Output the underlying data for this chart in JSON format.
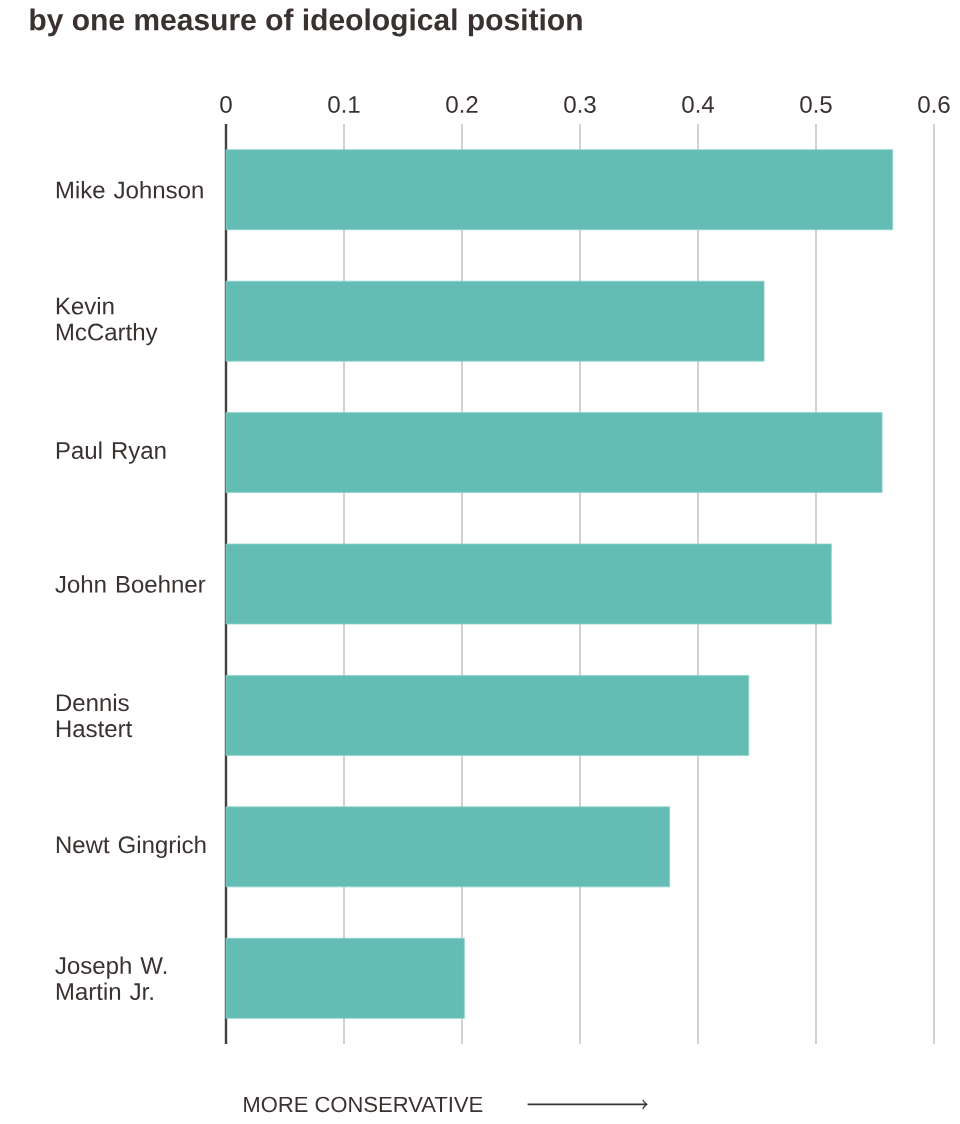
{
  "chart_data": {
    "type": "bar",
    "orientation": "horizontal",
    "title": "by one measure of ideological position",
    "xlabel": "MORE CONSERVATIVE",
    "categories": [
      "Mike Johnson",
      "Kevin McCarthy",
      "Paul Ryan",
      "John Boehner",
      "Dennis Hastert",
      "Newt Gingrich",
      "Joseph W. Martin Jr."
    ],
    "values": [
      0.565,
      0.456,
      0.556,
      0.513,
      0.443,
      0.376,
      0.202
    ],
    "color": "#63bdb5",
    "xlim": [
      0,
      0.6
    ],
    "xticks": [
      0,
      0.1,
      0.2,
      0.3,
      0.4,
      0.5,
      0.6
    ],
    "grid": "x"
  }
}
